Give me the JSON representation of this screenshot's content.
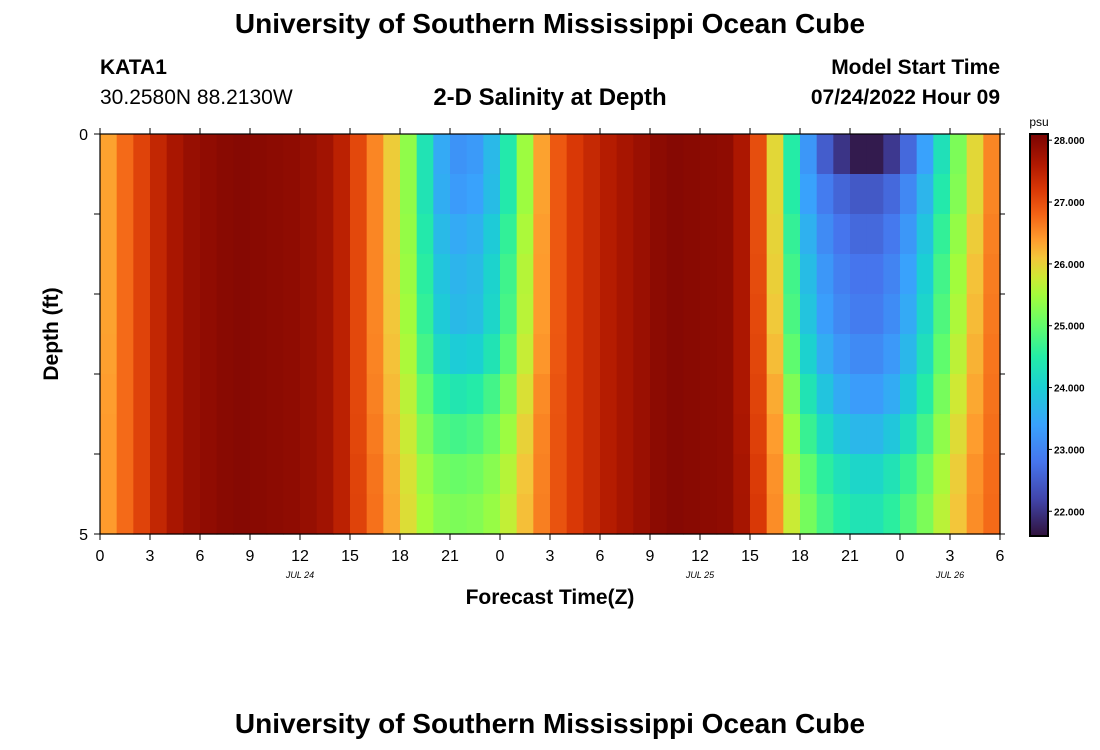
{
  "header": {
    "title": "University of Southern Mississippi Ocean Cube",
    "station": "KATA1",
    "coords": "30.2580N  88.2130W",
    "subtitle": "2-D Salinity at Depth",
    "model_start_label": "Model Start Time",
    "model_start_value": "07/24/2022 Hour 09"
  },
  "footer": {
    "title": "University of Southern Mississippi Ocean Cube"
  },
  "chart_data": {
    "type": "heatmap",
    "title": "2-D Salinity at Depth",
    "xlabel": "Forecast Time(Z)",
    "ylabel": "Depth (ft)",
    "x_tick_labels": [
      "0",
      "3",
      "6",
      "9",
      "12",
      "15",
      "18",
      "21",
      "0",
      "3",
      "6",
      "9",
      "12",
      "15",
      "18",
      "21",
      "0",
      "3",
      "6"
    ],
    "x_range_hours": [
      0,
      54
    ],
    "date_labels": [
      {
        "label": "JUL 24",
        "hour": 12
      },
      {
        "label": "JUL 25",
        "hour": 36
      },
      {
        "label": "JUL 26",
        "hour": 51
      }
    ],
    "y_range": [
      0,
      5
    ],
    "y_tick_labels": [
      "0",
      "5"
    ],
    "y_direction": "down",
    "colorbar": {
      "unit": "psu",
      "min": 21.6,
      "max": 28.1,
      "tick_values": [
        28.0,
        27.0,
        26.0,
        25.0,
        24.0,
        23.0,
        22.0
      ],
      "tick_labels": [
        "28.000",
        "27.000",
        "26.000",
        "25.000",
        "24.000",
        "23.000",
        "22.000"
      ],
      "color_stops": [
        {
          "value": 21.6,
          "color": "#30123b"
        },
        {
          "value": 22.2,
          "color": "#4145ab"
        },
        {
          "value": 22.8,
          "color": "#4675ed"
        },
        {
          "value": 23.4,
          "color": "#39a2fc"
        },
        {
          "value": 24.0,
          "color": "#1bcfd4"
        },
        {
          "value": 24.5,
          "color": "#24eca6"
        },
        {
          "value": 25.0,
          "color": "#61fc6c"
        },
        {
          "value": 25.5,
          "color": "#a4fc3b"
        },
        {
          "value": 25.8,
          "color": "#d1e834"
        },
        {
          "value": 26.1,
          "color": "#f3c63a"
        },
        {
          "value": 26.4,
          "color": "#fe9b2d"
        },
        {
          "value": 26.8,
          "color": "#f36315"
        },
        {
          "value": 27.2,
          "color": "#d93806"
        },
        {
          "value": 27.6,
          "color": "#b11901"
        },
        {
          "value": 28.1,
          "color": "#7a0403"
        }
      ]
    },
    "depth_levels_ft": [
      0.25,
      0.75,
      1.5,
      2.5,
      3.5,
      4.5,
      4.75
    ],
    "time_hours": [
      0,
      1,
      2,
      3,
      5,
      8,
      12,
      14,
      15,
      16,
      17,
      18,
      19,
      20,
      21,
      22,
      23,
      24,
      25,
      26,
      27,
      28,
      30,
      34,
      38,
      39,
      40,
      41,
      42,
      43,
      44,
      45,
      46,
      47,
      48,
      49,
      50,
      51,
      52,
      53,
      54
    ],
    "salinity_by_depth": [
      [
        26.1,
        26.6,
        26.9,
        27.3,
        27.8,
        28.0,
        27.9,
        27.7,
        27.3,
        26.8,
        26.3,
        25.8,
        24.9,
        23.8,
        23.2,
        23.2,
        23.4,
        24.0,
        24.9,
        26.0,
        26.7,
        27.1,
        27.5,
        28.0,
        27.9,
        27.4,
        26.6,
        25.3,
        23.7,
        22.8,
        22.2,
        21.8,
        21.6,
        21.8,
        22.3,
        23.0,
        23.8,
        24.8,
        25.6,
        26.3,
        26.8
      ],
      [
        26.1,
        26.6,
        26.9,
        27.3,
        27.8,
        28.0,
        27.9,
        27.7,
        27.3,
        26.8,
        26.3,
        25.8,
        24.9,
        23.8,
        23.3,
        23.3,
        23.5,
        24.0,
        24.9,
        26.0,
        26.7,
        27.1,
        27.5,
        28.0,
        27.9,
        27.4,
        26.6,
        25.3,
        23.7,
        23.1,
        22.7,
        22.5,
        22.4,
        22.5,
        22.8,
        23.3,
        24.0,
        24.9,
        25.6,
        26.3,
        26.8
      ],
      [
        26.1,
        26.6,
        26.9,
        27.3,
        27.8,
        28.0,
        27.9,
        27.7,
        27.3,
        26.8,
        26.3,
        25.8,
        25.0,
        24.0,
        23.6,
        23.6,
        23.8,
        24.3,
        25.1,
        26.1,
        26.7,
        27.1,
        27.5,
        28.0,
        27.9,
        27.4,
        26.6,
        25.4,
        24.0,
        23.4,
        23.0,
        22.8,
        22.7,
        22.8,
        23.1,
        23.6,
        24.3,
        25.1,
        25.8,
        26.4,
        26.8
      ],
      [
        26.1,
        26.6,
        26.9,
        27.3,
        27.8,
        28.0,
        27.9,
        27.7,
        27.3,
        26.8,
        26.3,
        25.9,
        25.1,
        24.2,
        23.8,
        23.7,
        23.9,
        24.4,
        25.2,
        26.1,
        26.7,
        27.1,
        27.5,
        28.0,
        27.9,
        27.4,
        26.7,
        25.5,
        24.2,
        23.6,
        23.2,
        23.0,
        22.9,
        23.0,
        23.3,
        23.8,
        24.5,
        25.3,
        25.9,
        26.5,
        26.8
      ],
      [
        26.2,
        26.6,
        26.9,
        27.3,
        27.8,
        28.0,
        27.9,
        27.7,
        27.3,
        26.8,
        26.4,
        26.0,
        25.4,
        24.8,
        24.6,
        24.6,
        24.8,
        25.1,
        25.6,
        26.3,
        26.8,
        27.1,
        27.5,
        28.0,
        27.9,
        27.4,
        26.8,
        25.9,
        24.8,
        24.2,
        23.8,
        23.5,
        23.4,
        23.5,
        23.8,
        24.3,
        24.9,
        25.6,
        26.1,
        26.6,
        26.8
      ],
      [
        26.2,
        26.6,
        26.9,
        27.3,
        27.8,
        28.0,
        27.9,
        27.7,
        27.3,
        26.9,
        26.5,
        26.1,
        25.7,
        25.3,
        25.2,
        25.2,
        25.3,
        25.5,
        25.9,
        26.4,
        26.8,
        27.1,
        27.5,
        28.0,
        27.9,
        27.5,
        26.9,
        26.1,
        25.4,
        24.9,
        24.6,
        24.4,
        24.3,
        24.4,
        24.7,
        25.0,
        25.4,
        25.9,
        26.3,
        26.7,
        26.8
      ],
      [
        26.2,
        26.6,
        26.9,
        27.3,
        27.8,
        28.0,
        27.9,
        27.7,
        27.3,
        26.9,
        26.5,
        26.1,
        25.7,
        25.3,
        25.2,
        25.2,
        25.3,
        25.5,
        25.9,
        26.4,
        26.8,
        27.1,
        27.5,
        28.0,
        27.9,
        27.5,
        26.9,
        26.1,
        25.4,
        24.9,
        24.6,
        24.4,
        24.3,
        24.4,
        24.7,
        25.0,
        25.4,
        25.9,
        26.3,
        26.7,
        26.8
      ]
    ]
  }
}
